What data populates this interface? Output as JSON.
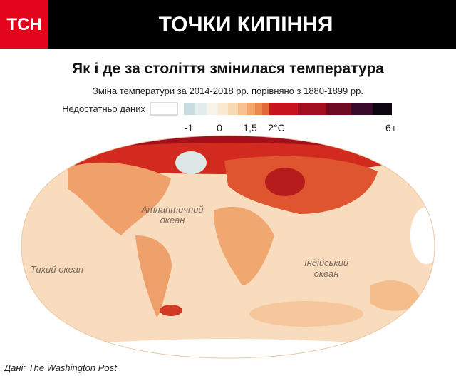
{
  "header": {
    "logo": "ТСН",
    "title": "ТОЧКИ КИПІННЯ"
  },
  "subtitle": "Як і де за століття змінилася температура",
  "note": "Зміна температури за 2014-2018 рр. порівняно з 1880-1899 рр.",
  "legend": {
    "no_data": "Недостатньо даних",
    "ticks": [
      "-1",
      "0",
      "1,5",
      "2°C",
      "6+"
    ]
  },
  "map": {
    "labels": [
      {
        "lines": [
          "Атлантичний",
          "океан"
        ]
      },
      {
        "lines": [
          "Тихий океан"
        ]
      },
      {
        "lines": [
          "Індійський",
          "океан"
        ]
      }
    ]
  },
  "source": "Дані: The Washington Post"
}
